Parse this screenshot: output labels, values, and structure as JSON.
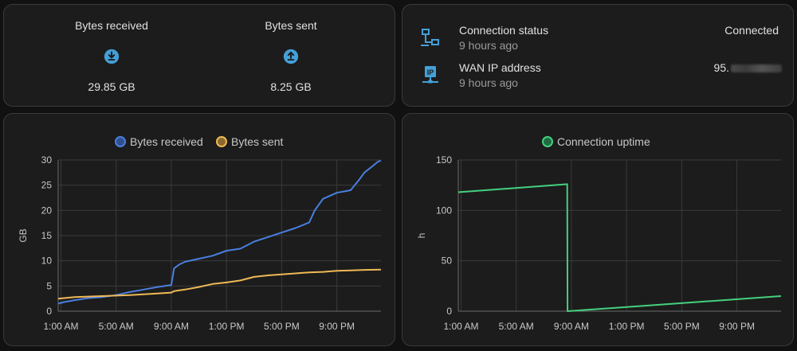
{
  "bytes": {
    "received": {
      "name": "Bytes received",
      "icon": "download-icon",
      "value": "29.85 GB"
    },
    "sent": {
      "name": "Bytes sent",
      "icon": "upload-icon",
      "value": "8.25 GB"
    }
  },
  "status": {
    "connection": {
      "name": "Connection status",
      "time": "9 hours ago",
      "value": "Connected",
      "icon": "network-icon"
    },
    "wan": {
      "name": "WAN IP address",
      "time": "9 hours ago",
      "value": "95.",
      "icon": "ip-network-icon"
    }
  },
  "colors": {
    "received": "#4a7fe0",
    "sent": "#f0b955",
    "uptime": "#45d07e"
  },
  "chart_data": [
    {
      "type": "line",
      "legend": [
        "Bytes received",
        "Bytes sent"
      ],
      "ylabel": "GB",
      "ylim": [
        0,
        30
      ],
      "yticks": [
        "0",
        "5",
        "10",
        "15",
        "20",
        "25",
        "30"
      ],
      "xticks": [
        "1:00 AM",
        "5:00 AM",
        "9:00 AM",
        "1:00 PM",
        "5:00 PM",
        "9:00 PM"
      ],
      "xlim": [
        0.8,
        24.2
      ],
      "series": [
        {
          "name": "Bytes received",
          "points": [
            [
              0.8,
              1.5
            ],
            [
              1.2,
              1.8
            ],
            [
              2,
              2.2
            ],
            [
              3,
              2.6
            ],
            [
              4,
              2.8
            ],
            [
              5,
              3.2
            ],
            [
              6,
              3.8
            ],
            [
              7,
              4.3
            ],
            [
              8,
              4.8
            ],
            [
              9,
              5.2
            ],
            [
              9.2,
              8.5
            ],
            [
              9.6,
              9.3
            ],
            [
              10,
              9.8
            ],
            [
              11,
              10.4
            ],
            [
              12,
              11
            ],
            [
              13,
              12
            ],
            [
              14,
              12.4
            ],
            [
              15,
              13.8
            ],
            [
              16,
              14.7
            ],
            [
              17,
              15.6
            ],
            [
              18,
              16.5
            ],
            [
              19,
              17.6
            ],
            [
              19.4,
              20
            ],
            [
              20,
              22.3
            ],
            [
              21,
              23.5
            ],
            [
              22,
              24
            ],
            [
              22.6,
              26
            ],
            [
              23,
              27.5
            ],
            [
              23.6,
              28.8
            ],
            [
              24,
              29.7
            ],
            [
              24.2,
              29.85
            ]
          ]
        },
        {
          "name": "Bytes sent",
          "points": [
            [
              0.8,
              2.5
            ],
            [
              2,
              2.8
            ],
            [
              4,
              3
            ],
            [
              6,
              3.2
            ],
            [
              8,
              3.5
            ],
            [
              9,
              3.7
            ],
            [
              9.2,
              4
            ],
            [
              10,
              4.3
            ],
            [
              11,
              4.8
            ],
            [
              12,
              5.4
            ],
            [
              13,
              5.7
            ],
            [
              14,
              6.1
            ],
            [
              15,
              6.8
            ],
            [
              16,
              7.1
            ],
            [
              17,
              7.3
            ],
            [
              18,
              7.5
            ],
            [
              19,
              7.7
            ],
            [
              20,
              7.8
            ],
            [
              21,
              8
            ],
            [
              22,
              8.1
            ],
            [
              23,
              8.2
            ],
            [
              24.2,
              8.25
            ]
          ]
        }
      ]
    },
    {
      "type": "line",
      "legend": [
        "Connection uptime"
      ],
      "ylabel": "h",
      "ylim": [
        0,
        150
      ],
      "yticks": [
        "0",
        "50",
        "100",
        "150"
      ],
      "xticks": [
        "1:00 AM",
        "5:00 AM",
        "9:00 AM",
        "1:00 PM",
        "5:00 PM",
        "9:00 PM"
      ],
      "xlim": [
        0.8,
        24.2
      ],
      "series": [
        {
          "name": "Connection uptime",
          "points": [
            [
              0.8,
              118
            ],
            [
              8.7,
              126
            ],
            [
              8.72,
              0
            ],
            [
              24.2,
              15
            ]
          ]
        }
      ]
    }
  ]
}
